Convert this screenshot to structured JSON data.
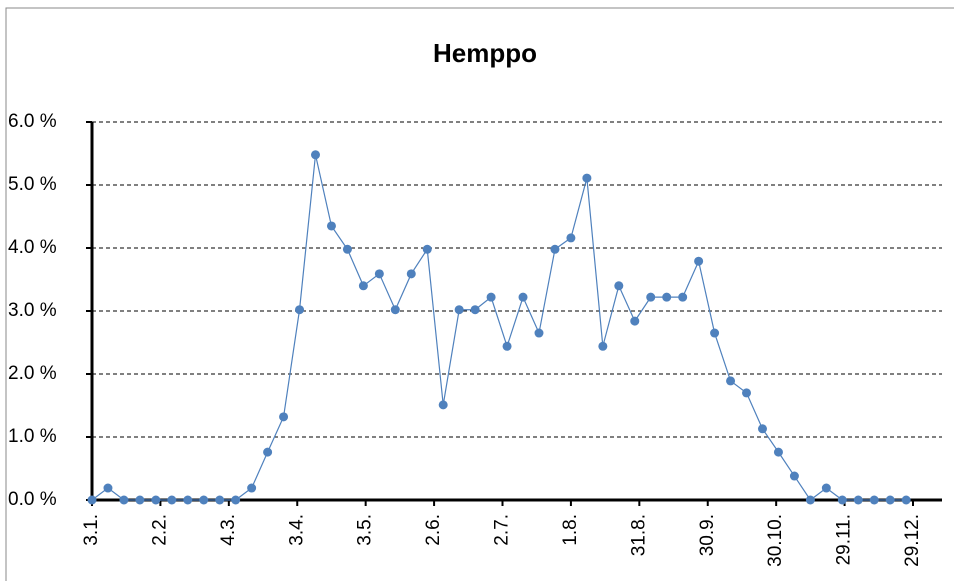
{
  "chart_data": {
    "type": "line",
    "title": "Hemppo",
    "x": [
      0,
      7,
      14,
      21,
      28,
      35,
      42,
      49,
      56,
      63,
      70,
      77,
      84,
      91,
      98,
      105,
      112,
      119,
      126,
      133,
      140,
      147,
      154,
      161,
      168,
      175,
      182,
      189,
      196,
      203,
      210,
      217,
      224,
      231,
      238,
      245,
      252,
      259,
      266,
      273,
      280,
      287,
      294,
      301,
      308,
      315,
      322,
      329,
      336,
      343,
      350,
      357
    ],
    "series": [
      {
        "name": "Hemppo",
        "color": "#4f81bd",
        "values": [
          0,
          0.19,
          0,
          0,
          0,
          0,
          0,
          0,
          0,
          0,
          0.19,
          0.76,
          1.32,
          3.02,
          5.48,
          4.35,
          3.98,
          3.4,
          3.59,
          3.02,
          3.59,
          3.98,
          1.51,
          3.02,
          3.02,
          3.22,
          2.44,
          3.22,
          2.65,
          3.98,
          4.16,
          5.11,
          2.44,
          3.4,
          2.84,
          3.22,
          3.22,
          3.22,
          3.79,
          2.65,
          1.89,
          1.7,
          1.13,
          0.76,
          0.38,
          0,
          0.19,
          0,
          0,
          0,
          0,
          0
        ]
      }
    ],
    "xlim": [
      0,
      360
    ],
    "xticks": [
      {
        "value": 0,
        "label": "3.1."
      },
      {
        "value": 30,
        "label": "2.2."
      },
      {
        "value": 60,
        "label": "4.3."
      },
      {
        "value": 90,
        "label": "3.4."
      },
      {
        "value": 120,
        "label": "3.5."
      },
      {
        "value": 150,
        "label": "2.6."
      },
      {
        "value": 180,
        "label": "2.7."
      },
      {
        "value": 210,
        "label": "1.8."
      },
      {
        "value": 240,
        "label": "31.8."
      },
      {
        "value": 270,
        "label": "30.9."
      },
      {
        "value": 300,
        "label": "30.10."
      },
      {
        "value": 330,
        "label": "29.11."
      },
      {
        "value": 360,
        "label": "29.12."
      }
    ],
    "ylim": [
      0,
      6
    ],
    "yticks": [
      {
        "value": 0,
        "label": "0.0 %"
      },
      {
        "value": 1,
        "label": "1.0 %"
      },
      {
        "value": 2,
        "label": "2.0 %"
      },
      {
        "value": 3,
        "label": "3.0 %"
      },
      {
        "value": 4,
        "label": "4.0 %"
      },
      {
        "value": 5,
        "label": "5.0 %"
      },
      {
        "value": 6,
        "label": "6.0 %"
      }
    ],
    "grid": true
  }
}
